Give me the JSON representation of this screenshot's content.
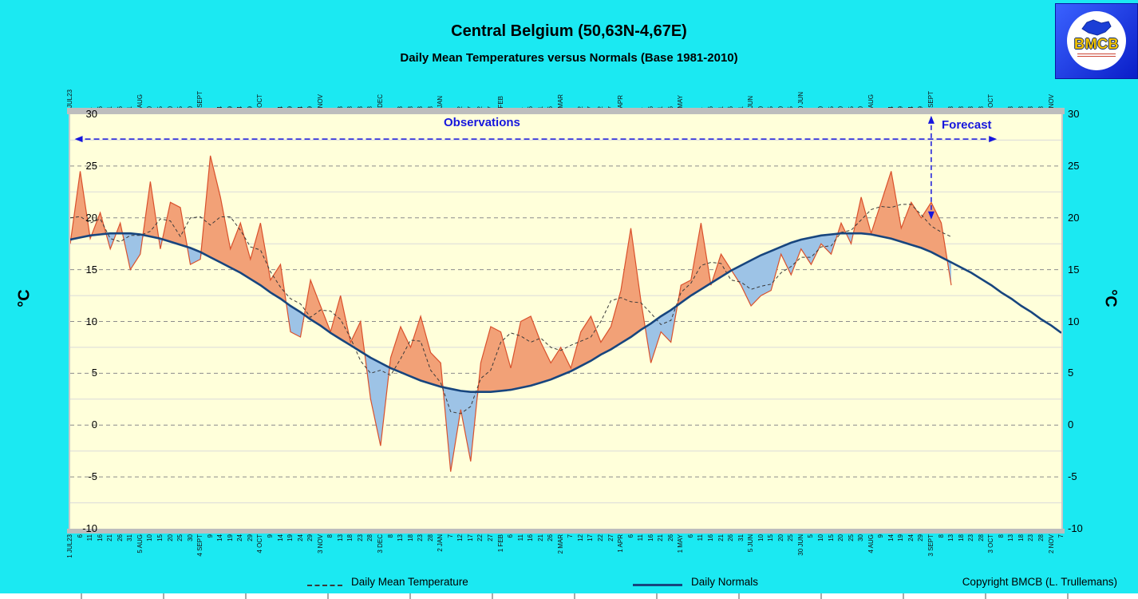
{
  "header": {
    "title": "Central Belgium (50,63N-4,67E)",
    "subtitle": "Daily Mean Temperatures versus Normals (Base 1981-2010)"
  },
  "logo": {
    "text": "BMCB"
  },
  "axis": {
    "unit": "°C"
  },
  "legend": {
    "mean_label": "Daily Mean Temperature",
    "normals_label": "Daily Normals"
  },
  "footer": {
    "copyright": "Copyright BMCB (L. Trullemans)"
  },
  "colors": {
    "background": "#1BE9F2",
    "plot_background": "#FFFFDA",
    "fill_above_normal": "#F2A177",
    "fill_below_normal": "#9DC3E6",
    "observed_line": "#D9512C",
    "normals_line": "#17457E",
    "smoothed": "#3A3A3A",
    "annotation": "#1616DD",
    "grid_major": "#8C8C8C",
    "grid_minor": "#DADADA",
    "band": "#BDBDBD"
  },
  "chart_data": {
    "type": "line",
    "title": "Central Belgium (50,63N-4,67E)",
    "subtitle": "Daily Mean Temperatures versus Normals (Base 1981-2010)",
    "ylabel": "°C",
    "ylim": [
      -10,
      30
    ],
    "yticks": [
      -10,
      -5,
      0,
      5,
      10,
      15,
      20,
      25,
      30
    ],
    "grid": "horizontal-dashed-major-5C-minor-2.5C",
    "legend_position": "bottom",
    "x_step_days": 5,
    "x_tick_labels": [
      "1 JUL23",
      "6",
      "11",
      "16",
      "21",
      "26",
      "31",
      "5 AUG",
      "10",
      "15",
      "20",
      "25",
      "30",
      "4 SEPT",
      "9",
      "14",
      "19",
      "24",
      "29",
      "4 OCT",
      "9",
      "14",
      "19",
      "24",
      "29",
      "3 NOV",
      "8",
      "13",
      "18",
      "23",
      "28",
      "3 DEC",
      "8",
      "13",
      "18",
      "23",
      "28",
      "2 JAN",
      "7",
      "12",
      "17",
      "22",
      "27",
      "1 FEB",
      "6",
      "11",
      "16",
      "21",
      "26",
      "2 MAR",
      "7",
      "12",
      "17",
      "22",
      "27",
      "1 APR",
      "6",
      "11",
      "16",
      "21",
      "26",
      "1 MAY",
      "6",
      "11",
      "16",
      "21",
      "26",
      "31",
      "5 JUN",
      "10",
      "15",
      "20",
      "25",
      "30 JUN",
      "5",
      "10",
      "15",
      "20",
      "25",
      "30",
      "4 AUG",
      "9",
      "14",
      "19",
      "24",
      "29",
      "3 SEPT",
      "8",
      "13",
      "18",
      "23",
      "28",
      "3 OCT",
      "8",
      "13",
      "18",
      "23",
      "28",
      "2 NOV",
      "7"
    ],
    "annotations": {
      "observations": "Observations",
      "forecast": "Forecast",
      "observations_span_days": [
        3,
        462
      ],
      "forecast_marker_day": 430
    },
    "series": [
      {
        "name": "Daily Mean Temperature",
        "color": "#D9512C",
        "fill_above": "#F2A177",
        "fill_below": "#9DC3E6",
        "values": [
          17.5,
          24.5,
          18.0,
          20.5,
          17.0,
          19.5,
          15.0,
          16.5,
          23.5,
          17.0,
          21.5,
          21.0,
          15.5,
          16.0,
          26.0,
          22.0,
          17.0,
          19.5,
          16.0,
          19.5,
          14.0,
          15.5,
          9.0,
          8.5,
          14.0,
          11.5,
          9.0,
          12.5,
          8.0,
          10.0,
          2.5,
          -2.0,
          6.5,
          9.5,
          7.5,
          10.5,
          7.0,
          6.0,
          -4.5,
          1.5,
          -3.5,
          6.0,
          9.5,
          9.0,
          5.5,
          10.0,
          10.5,
          8.0,
          6.0,
          7.5,
          5.5,
          9.0,
          10.5,
          8.0,
          9.5,
          13.0,
          19.0,
          12.0,
          6.0,
          9.0,
          8.0,
          13.5,
          14.0,
          19.5,
          13.5,
          16.5,
          15.0,
          13.5,
          11.5,
          12.5,
          13.0,
          16.5,
          14.5,
          17.0,
          15.5,
          17.5,
          16.5,
          19.5,
          17.5,
          22.0,
          18.5,
          21.5,
          24.5,
          19.0,
          21.5,
          20.0,
          21.5,
          19.5,
          13.5
        ]
      },
      {
        "name": "Daily Normals",
        "color": "#17457E",
        "values": [
          17.9,
          18.1,
          18.3,
          18.4,
          18.5,
          18.5,
          18.5,
          18.4,
          18.2,
          18.0,
          17.7,
          17.4,
          17.1,
          16.7,
          16.2,
          15.7,
          15.2,
          14.7,
          14.1,
          13.5,
          12.8,
          12.2,
          11.5,
          10.9,
          10.2,
          9.6,
          8.9,
          8.3,
          7.7,
          7.1,
          6.5,
          6.0,
          5.5,
          5.1,
          4.7,
          4.3,
          4.0,
          3.7,
          3.5,
          3.3,
          3.2,
          3.2,
          3.2,
          3.3,
          3.4,
          3.6,
          3.8,
          4.1,
          4.4,
          4.8,
          5.2,
          5.7,
          6.2,
          6.8,
          7.3,
          7.9,
          8.5,
          9.2,
          9.8,
          10.5,
          11.1,
          11.8,
          12.5,
          13.1,
          13.7,
          14.3,
          14.9,
          15.4,
          15.9,
          16.4,
          16.8,
          17.2,
          17.6,
          17.9,
          18.1,
          18.3,
          18.4,
          18.5,
          18.5,
          18.5,
          18.4,
          18.2,
          18.0,
          17.7,
          17.4,
          17.1,
          16.7,
          16.2,
          15.7,
          15.2,
          14.7,
          14.1,
          13.5,
          12.8,
          12.2,
          11.5,
          10.9,
          10.2,
          9.6,
          8.9
        ]
      }
    ]
  }
}
